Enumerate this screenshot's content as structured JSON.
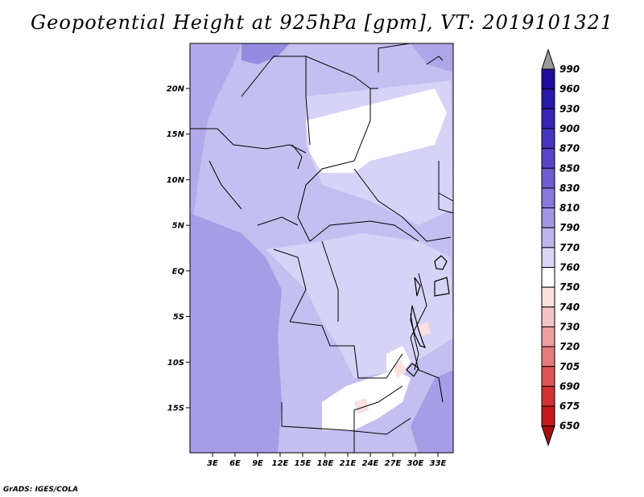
{
  "title": "Geopotential Height at 925hPa [gpm], VT: 2019101321",
  "credit": "GrADS: IGES/COLA",
  "latitude_labels": [
    "20N",
    "15N",
    "10N",
    "5N",
    "EQ",
    "5S",
    "10S",
    "15S"
  ],
  "latitudes": [
    20,
    15,
    10,
    5,
    0,
    -5,
    -10,
    -15
  ],
  "longitude_labels": [
    "3E",
    "6E",
    "9E",
    "12E",
    "15E",
    "18E",
    "21E",
    "24E",
    "27E",
    "30E",
    "33E"
  ],
  "longitudes": [
    3,
    6,
    9,
    12,
    15,
    18,
    21,
    24,
    27,
    30,
    33
  ],
  "colorbar": {
    "levels": [
      "990",
      "960",
      "930",
      "900",
      "870",
      "850",
      "830",
      "810",
      "790",
      "770",
      "760",
      "750",
      "740",
      "730",
      "720",
      "705",
      "690",
      "675",
      "650"
    ],
    "colors": [
      "#9a9a9a",
      "#1c0d9c",
      "#271aa8",
      "#3526b3",
      "#4536be",
      "#5646c6",
      "#6c5ed0",
      "#8579da",
      "#a296e3",
      "#bdb6ec",
      "#d9d6f6",
      "#ffffff",
      "#fbe0e0",
      "#f5c3c3",
      "#ee9f9f",
      "#e67b7b",
      "#de5555",
      "#d23232",
      "#c21a1a",
      "#a60f0f"
    ]
  }
}
